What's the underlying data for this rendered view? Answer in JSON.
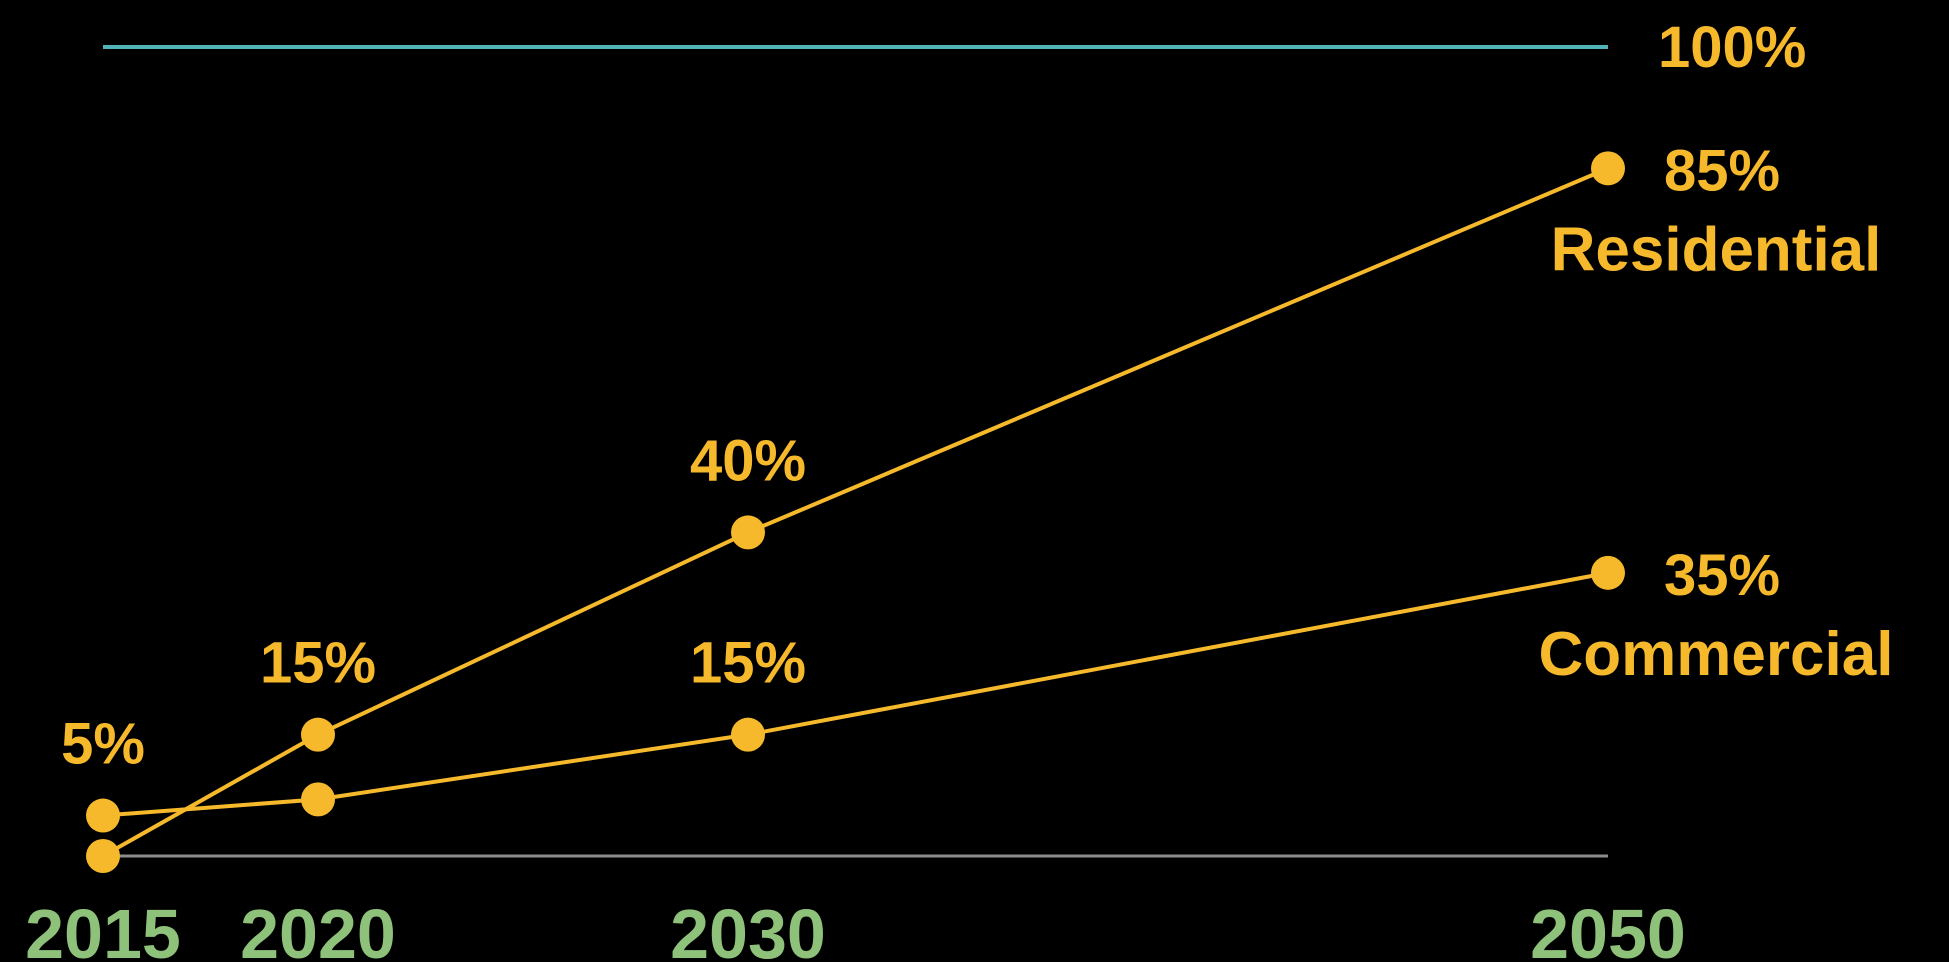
{
  "chart_data": {
    "type": "line",
    "x": [
      2015,
      2020,
      2030,
      2050
    ],
    "x_tick_labels": [
      "2015",
      "2020",
      "2030",
      "2050"
    ],
    "ylim": [
      0,
      100
    ],
    "grid": false,
    "reference_line": {
      "value": 100,
      "label": "100%"
    },
    "value_format": "%",
    "series": [
      {
        "name": "Residential",
        "values": [
          0,
          15,
          40,
          85
        ],
        "labels": [
          "",
          "15%",
          "40%",
          "85%"
        ]
      },
      {
        "name": "Commercial",
        "values": [
          5,
          7,
          15,
          35
        ],
        "labels": [
          "5%",
          "",
          "15%",
          "35%"
        ]
      }
    ],
    "colors": {
      "background": "#000000",
      "series": "#f6b92b",
      "reference_line": "#4fb3b8",
      "baseline": "#8c8c8c",
      "x_tick": "#8ec27a"
    }
  }
}
